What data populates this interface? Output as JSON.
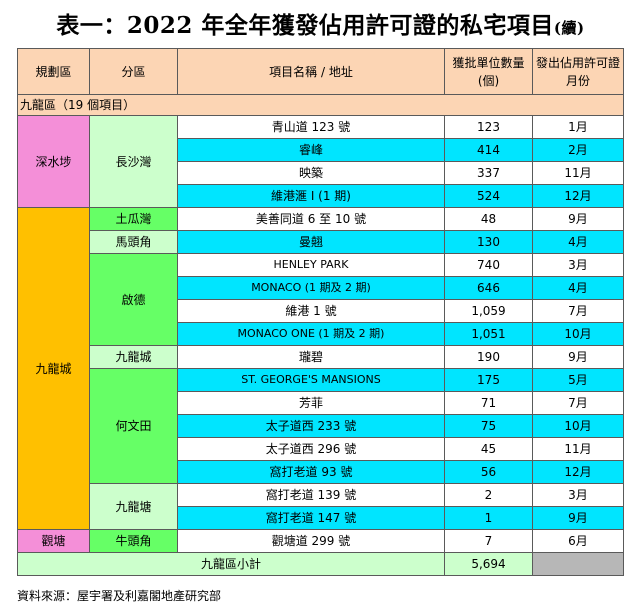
{
  "title": {
    "main": "表一：2022 年全年獲發佔用許可證的私宅項目",
    "cont": "(續)"
  },
  "headers": {
    "district": "規劃區",
    "subdistrict": "分區",
    "project": "項目名稱 / 地址",
    "units": "獲批單位數量(個)",
    "month": "發出佔用許可證月份"
  },
  "region_label": "九龍區（19 個項目）",
  "groups": {
    "sham_shui_po": "深水埗",
    "cheung_sha_wan": "長沙灣",
    "kowloon_city_district": "九龍城",
    "to_kwa_wan": "土瓜灣",
    "ma_tau_kok": "馬頭角",
    "kai_tak": "啟德",
    "kowloon_city": "九龍城",
    "ho_man_tin": "何文田",
    "kowloon_tong": "九龍塘",
    "kwun_tong_district": "觀塘",
    "ngau_tau_kok": "牛頭角"
  },
  "rows": [
    {
      "project": "青山道 123 號",
      "units": "123",
      "month": "1月"
    },
    {
      "project": "睿峰",
      "units": "414",
      "month": "2月"
    },
    {
      "project": "映築",
      "units": "337",
      "month": "11月"
    },
    {
      "project": "維港滙 I (1 期)",
      "units": "524",
      "month": "12月"
    },
    {
      "project": "美善同道 6 至 10 號",
      "units": "48",
      "month": "9月"
    },
    {
      "project": "曼翹",
      "units": "130",
      "month": "4月"
    },
    {
      "project": "HENLEY PARK",
      "units": "740",
      "month": "3月"
    },
    {
      "project": "MONACO (1 期及 2 期)",
      "units": "646",
      "month": "4月"
    },
    {
      "project": "維港 1 號",
      "units": "1,059",
      "month": "7月"
    },
    {
      "project": "MONACO ONE (1 期及 2 期)",
      "units": "1,051",
      "month": "10月"
    },
    {
      "project": "瓏碧",
      "units": "190",
      "month": "9月"
    },
    {
      "project": "ST. GEORGE'S MANSIONS",
      "units": "175",
      "month": "5月"
    },
    {
      "project": "芳菲",
      "units": "71",
      "month": "7月"
    },
    {
      "project": "太子道西 233 號",
      "units": "75",
      "month": "10月"
    },
    {
      "project": "太子道西 296 號",
      "units": "45",
      "month": "11月"
    },
    {
      "project": "窩打老道 93 號",
      "units": "56",
      "month": "12月"
    },
    {
      "project": "窩打老道 139 號",
      "units": "2",
      "month": "3月"
    },
    {
      "project": "窩打老道 147 號",
      "units": "1",
      "month": "9月"
    },
    {
      "project": "觀塘道 299 號",
      "units": "7",
      "month": "6月"
    }
  ],
  "subtotal": {
    "label": "九龍區小計",
    "units": "5,694"
  },
  "source": "資料來源：屋宇署及利嘉閣地產研究部"
}
